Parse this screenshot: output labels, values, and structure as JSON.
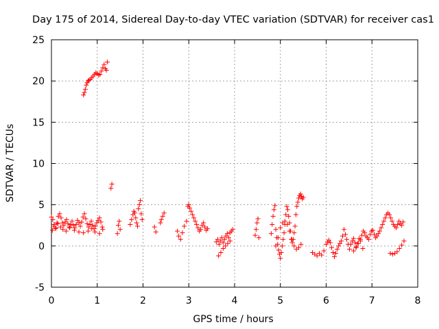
{
  "chart_data": {
    "type": "scatter",
    "title": "Day 175 of 2014, Sidereal Day-to-day VTEC variation (SDTVAR) for receiver cas1",
    "xlabel": "GPS time / hours",
    "ylabel": "SDTVAR / TECUs",
    "xlim": [
      0,
      8
    ],
    "ylim": [
      -5,
      25
    ],
    "x_ticks": [
      "0",
      "1",
      "2",
      "3",
      "4",
      "5",
      "6",
      "7",
      "8"
    ],
    "y_ticks": [
      "-5",
      "0",
      "5",
      "10",
      "15",
      "20",
      "25"
    ],
    "grid": true,
    "marker": "+",
    "colors": {
      "points": "#ff0000",
      "grid": "#a0a0a0",
      "axes": "#000000"
    },
    "series": [
      {
        "name": "SDTVAR",
        "x": [
          0.0,
          0.03,
          0.06,
          0.09,
          0.12,
          0.15,
          0.18,
          0.21,
          0.24,
          0.27,
          0.3,
          0.33,
          0.36,
          0.39,
          0.42,
          0.45,
          0.48,
          0.51,
          0.54,
          0.57,
          0.6,
          0.63,
          0.66,
          0.69,
          0.72,
          0.75,
          0.78,
          0.81,
          0.84,
          0.87,
          0.9,
          0.93,
          0.96,
          0.99,
          1.02,
          1.05,
          1.08,
          1.11,
          0.02,
          0.05,
          0.1,
          0.14,
          0.2,
          0.25,
          0.32,
          0.4,
          0.5,
          0.6,
          0.7,
          0.8,
          0.88,
          0.95,
          1.05,
          1.12,
          0.7,
          0.72,
          0.74,
          0.76,
          0.78,
          0.8,
          0.82,
          0.85,
          0.88,
          0.91,
          0.94,
          0.97,
          1.0,
          1.03,
          1.06,
          1.09,
          1.12,
          1.15,
          1.18,
          1.2,
          1.22,
          1.3,
          1.32,
          1.44,
          1.46,
          1.48,
          1.5,
          1.72,
          1.75,
          1.78,
          1.8,
          1.82,
          1.84,
          1.86,
          1.88,
          1.9,
          1.92,
          1.94,
          1.96,
          1.98,
          2.25,
          2.28,
          2.38,
          2.4,
          2.43,
          2.46,
          2.75,
          2.78,
          2.82,
          2.86,
          2.9,
          2.95,
          2.98,
          3.0,
          3.02,
          3.05,
          3.08,
          3.11,
          3.14,
          3.17,
          3.2,
          3.23,
          3.26,
          3.29,
          3.32,
          3.35,
          3.38,
          3.41,
          3.6,
          3.63,
          3.66,
          3.69,
          3.72,
          3.75,
          3.78,
          3.81,
          3.84,
          3.87,
          3.9,
          3.93,
          3.96,
          3.65,
          3.7,
          3.75,
          3.8,
          3.85,
          3.9,
          4.45,
          4.47,
          4.49,
          4.51,
          4.53,
          4.8,
          4.82,
          4.84,
          4.86,
          4.88,
          4.9,
          4.92,
          4.94,
          4.96,
          4.98,
          5.0,
          5.02,
          5.04,
          5.06,
          5.08,
          5.1,
          5.12,
          5.14,
          5.16,
          5.18,
          5.2,
          5.22,
          5.24,
          5.26,
          5.28,
          5.3,
          5.32,
          5.34,
          5.36,
          5.38,
          5.4,
          5.42,
          5.44,
          5.46,
          5.48,
          5.5,
          4.9,
          4.95,
          5.0,
          5.05,
          5.1,
          5.15,
          5.2,
          5.25,
          5.3,
          5.35,
          5.4,
          5.45,
          5.7,
          5.75,
          5.8,
          5.85,
          5.9,
          5.95,
          6.0,
          6.03,
          6.06,
          6.09,
          6.12,
          6.15,
          6.18,
          6.21,
          6.24,
          6.27,
          6.3,
          6.33,
          6.36,
          6.39,
          6.42,
          6.45,
          6.48,
          6.51,
          6.54,
          6.57,
          6.6,
          6.63,
          6.66,
          6.69,
          6.72,
          6.75,
          6.78,
          6.81,
          6.84,
          6.87,
          6.9,
          6.93,
          6.96,
          6.99,
          7.02,
          7.05,
          7.08,
          7.11,
          7.14,
          7.17,
          7.2,
          7.23,
          7.26,
          7.29,
          7.32,
          7.35,
          7.38,
          7.41,
          7.44,
          7.47,
          7.5,
          7.53,
          7.56,
          7.59,
          7.62,
          7.65,
          7.68,
          6.6,
          6.65,
          6.7,
          6.75,
          6.8,
          7.4,
          7.45,
          7.5,
          7.55,
          7.6,
          7.65,
          7.7
        ],
        "y": [
          3.5,
          3.2,
          2.6,
          2.1,
          2.8,
          3.6,
          3.9,
          3.4,
          2.8,
          2.5,
          2.9,
          3.2,
          2.7,
          2.3,
          2.6,
          3.0,
          2.5,
          2.2,
          2.6,
          3.1,
          2.8,
          2.4,
          2.9,
          3.5,
          3.9,
          3.3,
          2.7,
          2.3,
          2.6,
          3.0,
          2.5,
          2.1,
          2.4,
          2.8,
          3.1,
          3.4,
          2.9,
          2.3,
          1.9,
          2.4,
          2.2,
          2.7,
          2.3,
          2.0,
          1.8,
          2.2,
          1.9,
          1.7,
          1.6,
          1.8,
          2.1,
          1.7,
          1.5,
          2.0,
          18.3,
          18.6,
          19.0,
          19.5,
          19.8,
          20.0,
          20.1,
          20.2,
          20.4,
          20.6,
          20.8,
          21.0,
          20.9,
          20.7,
          20.8,
          21.2,
          21.6,
          22.0,
          21.5,
          21.3,
          22.3,
          7.0,
          7.5,
          1.5,
          2.5,
          3.0,
          2.0,
          2.6,
          3.2,
          3.8,
          4.2,
          4.0,
          3.4,
          2.8,
          2.4,
          4.5,
          5.0,
          5.5,
          3.9,
          3.2,
          2.3,
          1.7,
          2.8,
          3.2,
          3.6,
          4.0,
          1.8,
          1.2,
          0.8,
          1.6,
          2.4,
          3.0,
          4.8,
          5.0,
          4.6,
          4.2,
          3.8,
          3.4,
          3.0,
          2.6,
          2.2,
          1.8,
          2.0,
          2.5,
          2.8,
          2.3,
          1.9,
          2.1,
          0.5,
          0.8,
          0.2,
          0.6,
          1.0,
          0.4,
          0.8,
          1.2,
          1.5,
          1.0,
          1.6,
          1.8,
          2.0,
          -1.2,
          -0.8,
          -0.3,
          0.0,
          0.3,
          0.6,
          1.3,
          2.0,
          2.8,
          3.3,
          1.0,
          1.5,
          2.6,
          3.6,
          4.4,
          4.9,
          2.0,
          1.0,
          0.2,
          -0.5,
          -1.0,
          -1.5,
          -0.8,
          0.0,
          0.8,
          1.6,
          2.6,
          3.8,
          4.8,
          4.4,
          3.6,
          2.8,
          1.8,
          0.8,
          0.4,
          0.8,
          1.6,
          2.4,
          3.8,
          4.8,
          5.3,
          5.8,
          6.1,
          6.3,
          6.0,
          5.7,
          5.9,
          0.0,
          1.0,
          2.2,
          2.8,
          3.0,
          2.6,
          1.8,
          0.8,
          0.0,
          -0.4,
          -0.2,
          0.2,
          -0.8,
          -1.0,
          -1.2,
          -0.9,
          -1.1,
          -0.6,
          0.2,
          0.5,
          0.7,
          0.4,
          -0.2,
          -0.8,
          -1.3,
          -0.9,
          -0.4,
          0.0,
          0.3,
          0.6,
          1.2,
          2.0,
          1.4,
          0.8,
          0.2,
          -0.4,
          0.2,
          0.6,
          0.9,
          0.4,
          -0.1,
          0.3,
          0.9,
          0.8,
          1.3,
          1.8,
          1.6,
          1.2,
          1.0,
          0.8,
          1.4,
          1.8,
          1.9,
          1.4,
          1.0,
          1.2,
          1.5,
          1.8,
          2.2,
          2.6,
          3.0,
          3.4,
          3.8,
          4.0,
          3.8,
          3.4,
          3.0,
          2.6,
          2.4,
          2.2,
          2.6,
          3.0,
          2.7,
          2.5,
          2.9,
          -0.6,
          -0.2,
          0.3,
          0.6,
          -0.3,
          -0.9,
          -1.0,
          -0.9,
          -0.7,
          -0.3,
          0.1,
          0.6
        ]
      }
    ]
  }
}
